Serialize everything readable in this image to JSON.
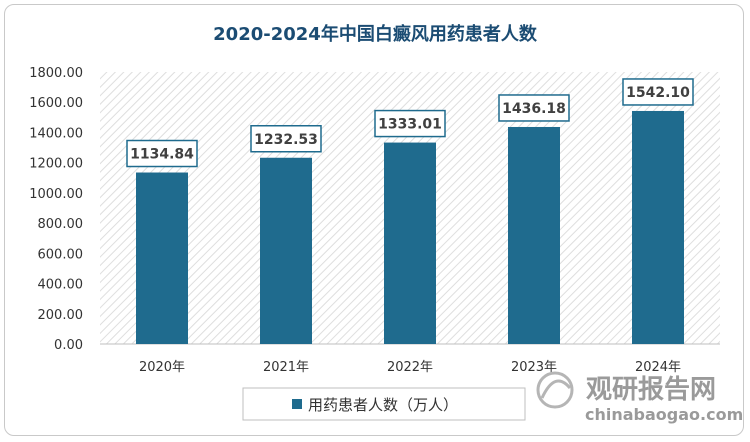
{
  "chart_data": {
    "type": "bar",
    "title": "2020-2024年中国白癜风用药患者人数",
    "categories": [
      "2020年",
      "2021年",
      "2022年",
      "2023年",
      "2024年"
    ],
    "series": [
      {
        "name": "用药患者人数（万人）",
        "values": [
          1134.84,
          1232.53,
          1333.01,
          1436.18,
          1542.1
        ]
      }
    ],
    "data_labels": [
      "1134.84",
      "1232.53",
      "1333.01",
      "1436.18",
      "1542.10"
    ],
    "y_ticks": [
      "0.00",
      "200.00",
      "400.00",
      "600.00",
      "800.00",
      "1000.00",
      "1200.00",
      "1400.00",
      "1600.00",
      "1800.00"
    ],
    "ylim": [
      0,
      1800
    ],
    "grid": false,
    "legend_position": "bottom",
    "colors": {
      "bar": "#1f6b8e",
      "label_border": "#1f6b8e",
      "title": "#1b4c73"
    }
  },
  "watermark": {
    "brand": "观研报告网",
    "url": "chinabaogao.com"
  }
}
